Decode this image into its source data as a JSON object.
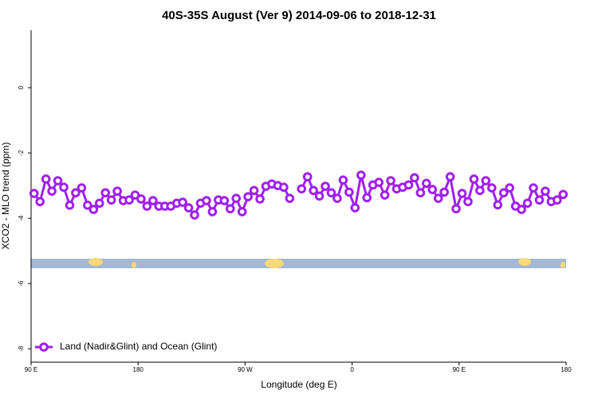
{
  "chart_data": {
    "type": "line",
    "title": "40S-35S August (Ver 9)   2014-09-06 to 2018-12-31",
    "x_label": "Longitude (deg E)",
    "y_label": "XCO2 - MLO trend (ppm)",
    "x": [
      92.5,
      97.5,
      102.5,
      107.5,
      112.5,
      117.5,
      122.5,
      127.5,
      132.5,
      137.5,
      142.5,
      147.5,
      152.5,
      157.5,
      162.5,
      167.5,
      172.5,
      177.5,
      182.5,
      187.5,
      192.5,
      197.5,
      202.5,
      207.5,
      212.5,
      217.5,
      222.5,
      227.5,
      232.5,
      237.5,
      242.5,
      247.5,
      252.5,
      257.5,
      262.5,
      267.5,
      272.5,
      277.5,
      282.5,
      287.5,
      292.5,
      297.5,
      302.5,
      307.5,
      312.5,
      317.5,
      322.5,
      327.5,
      332.5,
      337.5,
      342.5,
      347.5,
      352.5,
      357.5,
      362.5,
      367.5,
      372.5,
      377.5,
      382.5,
      387.5,
      392.5,
      397.5,
      402.5,
      407.5,
      412.5,
      417.5,
      422.5,
      427.5,
      432.5,
      437.5,
      442.5,
      447.5,
      452.5,
      457.5,
      462.5,
      467.5,
      472.5,
      477.5,
      482.5,
      487.5,
      492.5,
      497.5,
      502.5,
      507.5,
      512.5,
      517.5,
      522.5,
      527.5,
      532.5,
      537.5
    ],
    "series": [
      {
        "name": "Land (Nadir&Glint) and Ocean (Glint)",
        "color": "#a020f0",
        "values": [
          -3.24,
          -3.49,
          -2.8,
          -3.17,
          -2.85,
          -3.05,
          -3.6,
          -3.22,
          -3.07,
          -3.6,
          -3.73,
          -3.54,
          -3.22,
          -3.44,
          -3.17,
          -3.46,
          -3.44,
          -3.29,
          -3.41,
          -3.63,
          -3.46,
          -3.63,
          -3.63,
          -3.63,
          -3.54,
          -3.51,
          -3.68,
          -3.9,
          -3.54,
          -3.46,
          -3.8,
          -3.44,
          -3.46,
          -3.71,
          -3.39,
          -3.8,
          -3.34,
          -3.15,
          -3.41,
          -3.02,
          -2.95,
          -3.0,
          -3.05,
          -3.39,
          null,
          -3.1,
          -2.73,
          -3.15,
          -3.32,
          -3.02,
          -3.22,
          -3.39,
          -2.83,
          -3.2,
          -3.68,
          -2.68,
          -3.37,
          -2.98,
          -2.9,
          -3.29,
          -2.85,
          -3.1,
          -3.05,
          -2.98,
          -2.76,
          -3.22,
          -2.93,
          -3.12,
          -3.39,
          -3.2,
          -2.73,
          -3.71,
          -3.24,
          -3.49,
          -2.8,
          -3.15,
          -2.85,
          -3.07,
          -3.59,
          -3.22,
          -3.07,
          -3.63,
          -3.73,
          -3.54,
          -3.07,
          -3.44,
          -3.17,
          -3.49,
          -3.44,
          -3.27
        ]
      }
    ],
    "xlim": [
      90,
      540
    ],
    "xticks": [
      {
        "value": 90,
        "label": "90 E"
      },
      180,
      {
        "value": 270,
        "label": "90 W"
      },
      {
        "value": 360,
        "label": "0"
      },
      {
        "value": 450,
        "label": "90 E"
      },
      {
        "value": 540,
        "label": "180"
      }
    ],
    "ylim": [
      -8.41,
      1.76
    ],
    "yticks": [
      0,
      -2,
      -4,
      -6,
      -8
    ],
    "legend": "bottomleft"
  }
}
